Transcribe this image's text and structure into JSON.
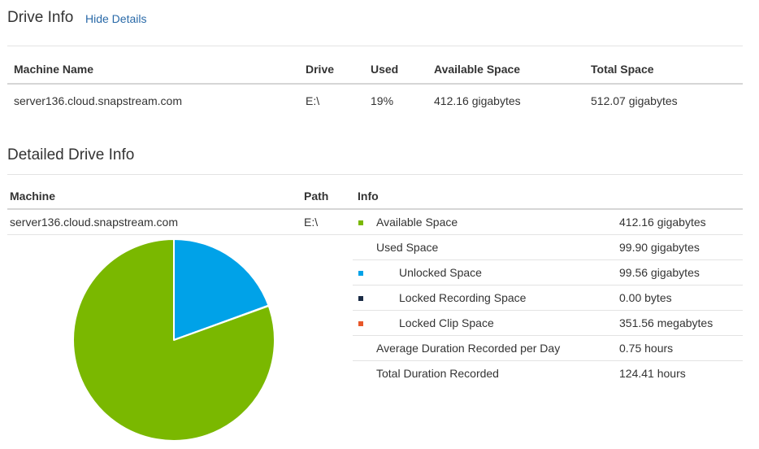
{
  "drive_info": {
    "title": "Drive Info",
    "toggle_link": "Hide Details",
    "headers": {
      "machine": "Machine Name",
      "drive": "Drive",
      "used": "Used",
      "available": "Available Space",
      "total": "Total Space"
    },
    "row": {
      "machine": "server136.cloud.snapstream.com",
      "drive": "E:\\",
      "used": "19%",
      "available": "412.16 gigabytes",
      "total": "512.07 gigabytes"
    }
  },
  "detailed": {
    "title": "Detailed Drive Info",
    "headers": {
      "machine": "Machine",
      "path": "Path",
      "info": "Info"
    },
    "machine": "server136.cloud.snapstream.com",
    "path": "E:\\",
    "rows": [
      {
        "label": "Available Space",
        "value": "412.16 gigabytes",
        "color": "#7ab800",
        "indent": 0
      },
      {
        "label": "Used Space",
        "value": "99.90 gigabytes",
        "color": "",
        "indent": 0
      },
      {
        "label": "Unlocked Space",
        "value": "99.56 gigabytes",
        "color": "#00a2e8",
        "indent": 1
      },
      {
        "label": "Locked Recording Space",
        "value": "0.00 bytes",
        "color": "#1a2b45",
        "indent": 1
      },
      {
        "label": "Locked Clip Space",
        "value": "351.56 megabytes",
        "color": "#e8572a",
        "indent": 1
      },
      {
        "label": "Average Duration Recorded per Day",
        "value": "0.75 hours",
        "color": "",
        "indent": 0
      },
      {
        "label": "Total Duration Recorded",
        "value": "124.41 hours",
        "color": "",
        "indent": 0
      }
    ]
  },
  "chart_data": {
    "type": "pie",
    "title": "",
    "slices": [
      {
        "label": "Available Space",
        "value": 412.16,
        "color": "#7ab800"
      },
      {
        "label": "Unlocked Space",
        "value": 99.56,
        "color": "#00a2e8"
      },
      {
        "label": "Locked Recording Space",
        "value": 0.0,
        "color": "#1a2b45"
      },
      {
        "label": "Locked Clip Space",
        "value": 0.34,
        "color": "#e8572a"
      }
    ]
  }
}
